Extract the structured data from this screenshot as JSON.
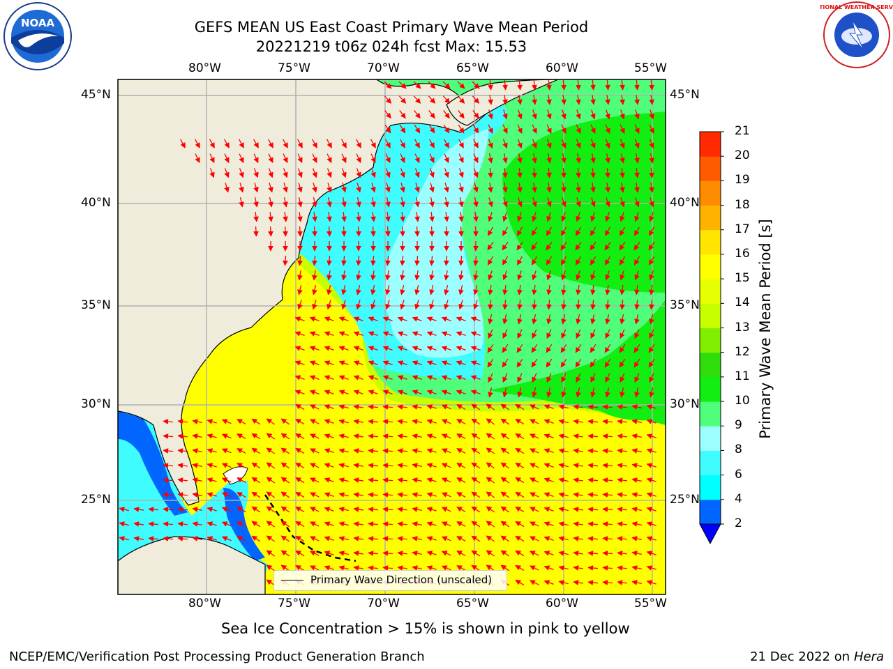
{
  "title": {
    "line1": "GEFS MEAN US East Coast Primary Wave Mean Period",
    "line2": "20221219 t06z 024h fcst   Max: 15.53"
  },
  "logos": {
    "left": {
      "name": "noaa-logo",
      "text": "NOAA"
    },
    "right": {
      "name": "nws-logo",
      "text": "NATIONAL WEATHER SERVICE"
    }
  },
  "map": {
    "lon_labels": [
      "80°W",
      "75°W",
      "70°W",
      "65°W",
      "60°W",
      "55°W"
    ],
    "lat_labels": [
      "45°N",
      "40°N",
      "35°N",
      "30°N",
      "25°N"
    ],
    "extent": {
      "lon_min": -85,
      "lon_max": -54.4,
      "lat_min": 20.5,
      "lat_max": 45.8
    },
    "colors": {
      "land": "#efecdc",
      "grid": "#b0b0b0",
      "arrows": "#ff0000",
      "coast": "#000000"
    }
  },
  "legend": {
    "label": "Primary Wave Direction (unscaled)"
  },
  "colorbar": {
    "label": "Primary Wave Mean Period [s]",
    "ticks": [
      "2",
      "4",
      "6",
      "8",
      "9",
      "10",
      "11",
      "12",
      "13",
      "14",
      "15",
      "16",
      "17",
      "18",
      "19",
      "20",
      "21"
    ],
    "colors": [
      "#0066ff",
      "#00ffff",
      "#3ffcff",
      "#9cffff",
      "#4fff7c",
      "#12ee12",
      "#2fdd0a",
      "#80f000",
      "#c8ff00",
      "#e7ff00",
      "#ffff00",
      "#ffe500",
      "#ffb300",
      "#ff8c00",
      "#ff5a00",
      "#ff2a00"
    ],
    "extend_color": "#0000ff"
  },
  "notes": {
    "sea_ice": "Sea Ice Concentration > 15% is shown in pink to yellow",
    "footer_left": "NCEP/EMC/Verification Post Processing Product Generation Branch",
    "footer_date": "21 Dec 2022 on",
    "footer_host": "Hera"
  }
}
